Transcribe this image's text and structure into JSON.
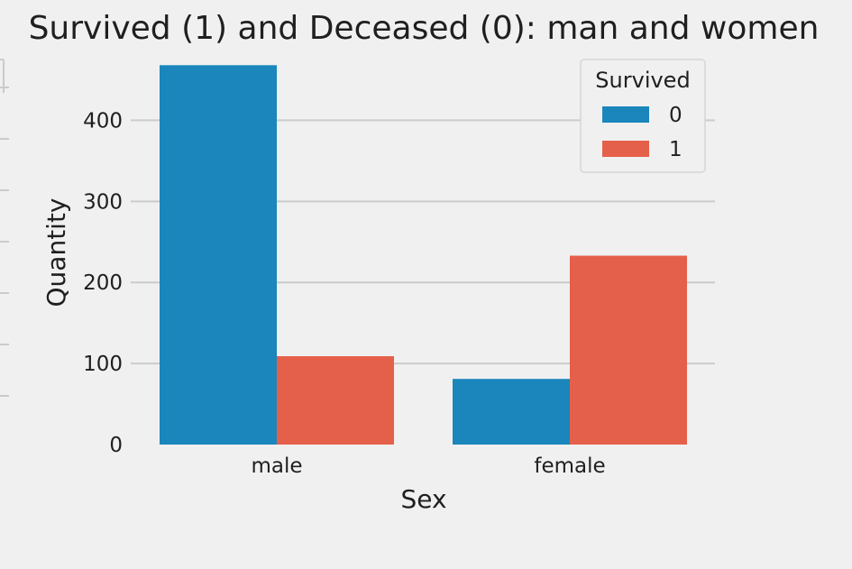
{
  "chart_data": {
    "type": "bar",
    "title": "Survived (1) and Deceased (0): man and women",
    "xlabel": "Sex",
    "ylabel": "Quantity",
    "categories": [
      "male",
      "female"
    ],
    "series": [
      {
        "name": "0",
        "values": [
          468,
          81
        ],
        "color": "#1a86bc"
      },
      {
        "name": "1",
        "values": [
          109,
          233
        ],
        "color": "#e5604a"
      }
    ],
    "ylim": [
      0,
      475
    ],
    "yticks": [
      0,
      100,
      200,
      300,
      400
    ],
    "grid": true,
    "legend": {
      "title": "Survived",
      "placement": "top-right"
    }
  },
  "colors": {
    "background": "#f0f0f0",
    "grid": "#cbcbcb",
    "legend_frame": "#d6d6d6"
  }
}
